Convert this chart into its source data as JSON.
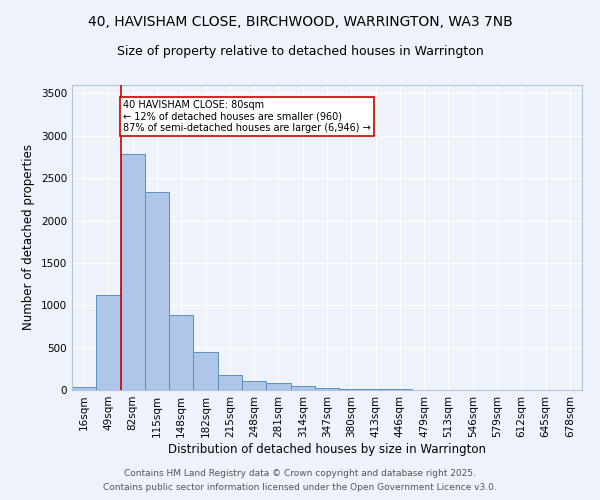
{
  "title1": "40, HAVISHAM CLOSE, BIRCHWOOD, WARRINGTON, WA3 7NB",
  "title2": "Size of property relative to detached houses in Warrington",
  "xlabel": "Distribution of detached houses by size in Warrington",
  "ylabel": "Number of detached properties",
  "bar_labels": [
    "16sqm",
    "49sqm",
    "82sqm",
    "115sqm",
    "148sqm",
    "182sqm",
    "215sqm",
    "248sqm",
    "281sqm",
    "314sqm",
    "347sqm",
    "380sqm",
    "413sqm",
    "446sqm",
    "479sqm",
    "513sqm",
    "546sqm",
    "579sqm",
    "612sqm",
    "645sqm",
    "678sqm"
  ],
  "bar_values": [
    40,
    1120,
    2780,
    2340,
    880,
    450,
    175,
    110,
    80,
    45,
    20,
    10,
    15,
    10,
    5,
    3,
    2,
    1,
    1,
    0,
    0
  ],
  "bar_color": "#aec6e8",
  "bar_edge_color": "#5a8fc0",
  "vline_x_idx": 1.5,
  "vline_color": "#cc0000",
  "annotation_text": "40 HAVISHAM CLOSE: 80sqm\n← 12% of detached houses are smaller (960)\n87% of semi-detached houses are larger (6,946) →",
  "annotation_box_color": "white",
  "annotation_box_edge": "#cc0000",
  "ylim": [
    0,
    3600
  ],
  "yticks": [
    0,
    500,
    1000,
    1500,
    2000,
    2500,
    3000,
    3500
  ],
  "footer1": "Contains HM Land Registry data © Crown copyright and database right 2025.",
  "footer2": "Contains public sector information licensed under the Open Government Licence v3.0.",
  "bg_color": "#eef2fa",
  "grid_color": "#ffffff",
  "title_fontsize": 10,
  "subtitle_fontsize": 9,
  "axis_label_fontsize": 8.5,
  "tick_fontsize": 7.5,
  "footer_fontsize": 6.5
}
